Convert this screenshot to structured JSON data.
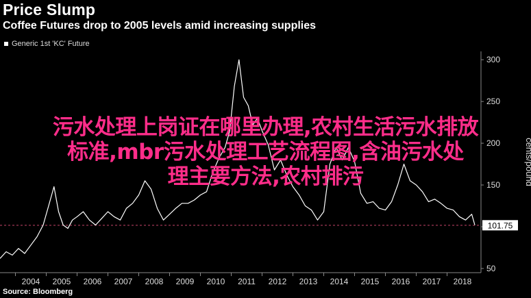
{
  "header": {
    "title": "Price Slump",
    "subtitle": "Coffee Futures drop to 2005 levels amid increasing supplies"
  },
  "legend": {
    "label": "Generic 1st 'KC' Future"
  },
  "source": "Source: Bloomberg",
  "overlay": {
    "line1": "污水处理上岗证在哪里办理,农村生活污水排放",
    "line2": "标准,mbr污水处理工艺流程图,含油污水处",
    "line3": "理主要方法,农村排污"
  },
  "colors": {
    "background": "#000000",
    "line": "#ffffff",
    "reference": "#c8456a",
    "overlay_text": "#ff2d8a"
  },
  "chart_data": {
    "type": "line",
    "title": "Price Slump",
    "subtitle": "Coffee Futures drop to 2005 levels amid increasing supplies",
    "ylabel": "cents/pound",
    "ylim": [
      45,
      310
    ],
    "xlim": [
      2003.5,
      2019.1
    ],
    "xticks": [
      "2004",
      "2005",
      "2006",
      "2007",
      "2008",
      "2009",
      "2010",
      "2011",
      "2012",
      "2013",
      "2014",
      "2015",
      "2016",
      "2017",
      "2018"
    ],
    "yticks": [
      50,
      100,
      150,
      200,
      250,
      300
    ],
    "last_value_label": "101.75",
    "reference_line": 101.75,
    "grid": false,
    "legend_position": "top-left",
    "series": [
      {
        "name": "Generic 1st 'KC' Future",
        "x": [
          2003.5,
          2003.7,
          2003.9,
          2004.1,
          2004.3,
          2004.5,
          2004.7,
          2004.9,
          2005.1,
          2005.25,
          2005.4,
          2005.55,
          2005.7,
          2005.85,
          2006.0,
          2006.2,
          2006.4,
          2006.6,
          2006.8,
          2007.0,
          2007.2,
          2007.4,
          2007.6,
          2007.8,
          2008.0,
          2008.2,
          2008.4,
          2008.6,
          2008.8,
          2009.0,
          2009.2,
          2009.4,
          2009.6,
          2009.8,
          2010.0,
          2010.2,
          2010.4,
          2010.6,
          2010.8,
          2010.95,
          2011.1,
          2011.25,
          2011.4,
          2011.55,
          2011.7,
          2011.85,
          2012.0,
          2012.2,
          2012.4,
          2012.6,
          2012.8,
          2013.0,
          2013.2,
          2013.4,
          2013.6,
          2013.8,
          2014.0,
          2014.2,
          2014.4,
          2014.6,
          2014.8,
          2015.0,
          2015.2,
          2015.4,
          2015.6,
          2015.8,
          2016.0,
          2016.2,
          2016.4,
          2016.6,
          2016.8,
          2017.0,
          2017.2,
          2017.4,
          2017.6,
          2017.8,
          2018.0,
          2018.2,
          2018.4,
          2018.6,
          2018.8,
          2018.9
        ],
        "values": [
          62,
          70,
          66,
          74,
          68,
          78,
          88,
          102,
          128,
          148,
          118,
          102,
          98,
          108,
          112,
          118,
          108,
          102,
          110,
          118,
          112,
          108,
          122,
          128,
          138,
          155,
          145,
          122,
          108,
          115,
          122,
          128,
          128,
          132,
          138,
          142,
          165,
          182,
          195,
          215,
          268,
          300,
          255,
          245,
          222,
          230,
          215,
          198,
          168,
          180,
          162,
          148,
          138,
          125,
          120,
          108,
          118,
          175,
          195,
          180,
          195,
          178,
          140,
          128,
          130,
          122,
          120,
          130,
          150,
          175,
          155,
          150,
          142,
          130,
          133,
          128,
          122,
          120,
          112,
          108,
          115,
          102
        ]
      }
    ]
  }
}
